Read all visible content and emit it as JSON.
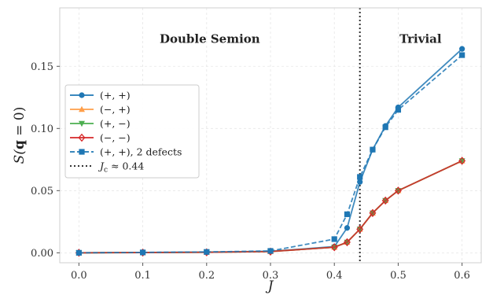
{
  "chart_data": {
    "type": "line",
    "xlabel": "J",
    "ylabel_prefix": "S(",
    "ylabel_bold": "q",
    "ylabel_suffix": " = 0)",
    "xlim": [
      -0.03,
      0.63
    ],
    "ylim": [
      -0.008,
      0.197
    ],
    "xticks": [
      0.0,
      0.1,
      0.2,
      0.3,
      0.4,
      0.5,
      0.6
    ],
    "xtick_labels": [
      "0.0",
      "0.1",
      "0.2",
      "0.3",
      "0.4",
      "0.5",
      "0.6"
    ],
    "yticks": [
      0.0,
      0.05,
      0.1,
      0.15
    ],
    "ytick_labels": [
      "0.00",
      "0.05",
      "0.10",
      "0.15"
    ],
    "grid": true,
    "legend_position": "center-left",
    "critical_line": {
      "x": 0.44,
      "label": "J_c ≈ 0.44",
      "label_main": "J",
      "label_sub": "c",
      "label_rest": " ≈ 0.44",
      "color": "#333333",
      "style": "dotted"
    },
    "annotations": [
      {
        "text": "Double Semion",
        "x": 0.205,
        "y": 0.172
      },
      {
        "text": "Trivial",
        "x": 0.535,
        "y": 0.172
      }
    ],
    "series": [
      {
        "name": "(+, +)",
        "color": "#1f77b4",
        "marker": "circle",
        "dash": false,
        "x": [
          0.0,
          0.1,
          0.2,
          0.3,
          0.4,
          0.42,
          0.44,
          0.46,
          0.48,
          0.5,
          0.6
        ],
        "y": [
          0.0,
          0.0003,
          0.0006,
          0.0012,
          0.005,
          0.02,
          0.057,
          0.083,
          0.102,
          0.117,
          0.164
        ]
      },
      {
        "name": "(−, +)",
        "color": "#ff9f4a",
        "marker": "triangle-up",
        "dash": false,
        "x": [
          0.0,
          0.1,
          0.2,
          0.3,
          0.4,
          0.42,
          0.44,
          0.46,
          0.48,
          0.5,
          0.6
        ],
        "y": [
          0.0,
          0.0002,
          0.0004,
          0.001,
          0.0045,
          0.0085,
          0.019,
          0.032,
          0.042,
          0.05,
          0.074
        ]
      },
      {
        "name": "(+, −)",
        "color": "#4caf50",
        "marker": "triangle-down",
        "dash": false,
        "x": [
          0.0,
          0.1,
          0.2,
          0.3,
          0.4,
          0.42,
          0.44,
          0.46,
          0.48,
          0.5,
          0.6
        ],
        "y": [
          0.0,
          0.0002,
          0.0004,
          0.001,
          0.0045,
          0.0085,
          0.019,
          0.032,
          0.042,
          0.05,
          0.074
        ]
      },
      {
        "name": "(−, −)",
        "color": "#d62728",
        "marker": "diamond",
        "dash": false,
        "x": [
          0.0,
          0.1,
          0.2,
          0.3,
          0.4,
          0.42,
          0.44,
          0.46,
          0.48,
          0.5,
          0.6
        ],
        "y": [
          0.0,
          0.0002,
          0.0004,
          0.001,
          0.0045,
          0.0085,
          0.019,
          0.032,
          0.042,
          0.05,
          0.074
        ]
      },
      {
        "name": "(+, +), 2 defects",
        "color": "#1f77b4",
        "marker": "square",
        "dash": true,
        "x": [
          0.0,
          0.1,
          0.2,
          0.3,
          0.4,
          0.42,
          0.44,
          0.46,
          0.48,
          0.5,
          0.6
        ],
        "y": [
          0.0,
          0.0003,
          0.0007,
          0.0015,
          0.011,
          0.031,
          0.061,
          0.083,
          0.101,
          0.115,
          0.159
        ]
      }
    ]
  }
}
